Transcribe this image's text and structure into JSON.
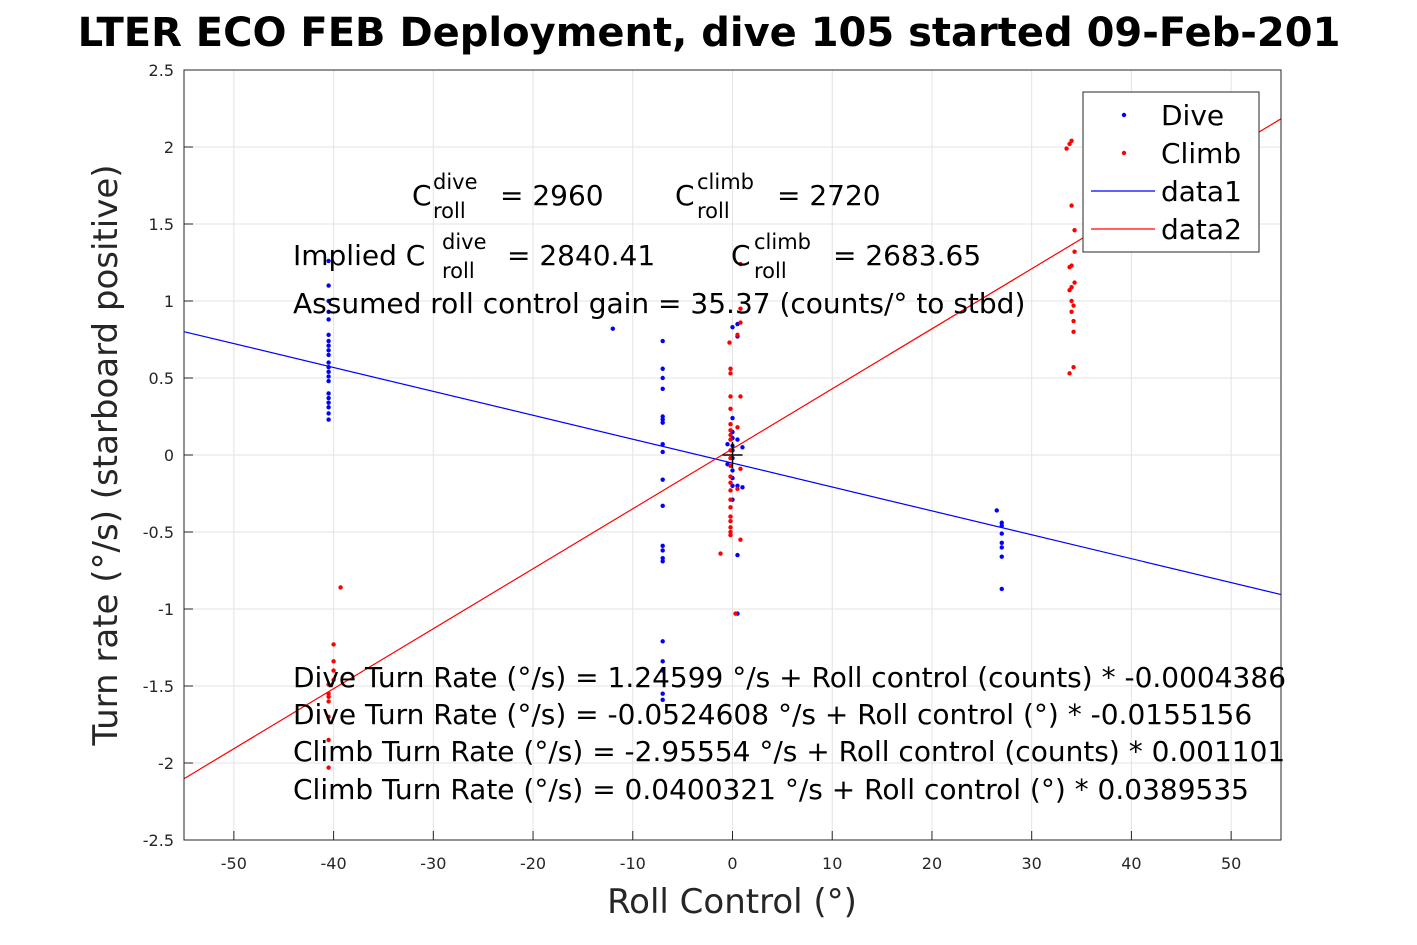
{
  "chart_data": {
    "type": "scatter",
    "title": "LTER ECO FEB Deployment, dive 105 started 09-Feb-201",
    "xlabel": "Roll Control (°)",
    "ylabel": "Turn rate (°/s) (starboard positive)",
    "xlim": [
      -55,
      55
    ],
    "ylim": [
      -2.5,
      2.5
    ],
    "xticks": [
      "-50",
      "-40",
      "-30",
      "-20",
      "-10",
      "0",
      "10",
      "20",
      "30",
      "40",
      "50"
    ],
    "yticks": [
      "-2.5",
      "-2",
      "-1.5",
      "-1",
      "-0.5",
      "0",
      "0.5",
      "1",
      "1.5",
      "2",
      "2.5"
    ],
    "grid": true,
    "legend_position": "top-right",
    "colors": {
      "dive": "#0000ff",
      "climb": "#ff0000",
      "marker": "#000000"
    },
    "legend": [
      {
        "label": "Dive",
        "kind": "point",
        "color": "#0000ff"
      },
      {
        "label": "Climb",
        "kind": "point",
        "color": "#ff0000"
      },
      {
        "label": "data1",
        "kind": "line",
        "color": "#0000ff"
      },
      {
        "label": "data2",
        "kind": "line",
        "color": "#ff0000"
      }
    ],
    "series": [
      {
        "name": "Dive",
        "color": "#0000ff",
        "points": [
          [
            -40.5,
            1.26
          ],
          [
            -40.5,
            1.1
          ],
          [
            -40.5,
            1.0
          ],
          [
            -40.5,
            0.93
          ],
          [
            -40.5,
            0.88
          ],
          [
            -40.5,
            0.78
          ],
          [
            -40.5,
            0.74
          ],
          [
            -40.5,
            0.71
          ],
          [
            -40.5,
            0.68
          ],
          [
            -40.5,
            0.65
          ],
          [
            -40.5,
            0.6
          ],
          [
            -40.5,
            0.57
          ],
          [
            -40.5,
            0.54
          ],
          [
            -40.5,
            0.51
          ],
          [
            -40.5,
            0.48
          ],
          [
            -40.5,
            0.4
          ],
          [
            -40.5,
            0.37
          ],
          [
            -40.5,
            0.34
          ],
          [
            -40.5,
            0.31
          ],
          [
            -40.5,
            0.27
          ],
          [
            -40.5,
            0.23
          ],
          [
            -12,
            0.82
          ],
          [
            -7,
            0.74
          ],
          [
            -7,
            0.56
          ],
          [
            -7,
            0.5
          ],
          [
            -7,
            0.43
          ],
          [
            -7,
            0.25
          ],
          [
            -7,
            0.23
          ],
          [
            -7,
            0.21
          ],
          [
            -7,
            0.07
          ],
          [
            -7,
            0.02
          ],
          [
            -7,
            -0.16
          ],
          [
            -7,
            -0.33
          ],
          [
            -7,
            -0.59
          ],
          [
            -7,
            -0.62
          ],
          [
            -7,
            -0.67
          ],
          [
            -7,
            -0.69
          ],
          [
            -7,
            -1.21
          ],
          [
            -7,
            -1.34
          ],
          [
            -7,
            -1.4
          ],
          [
            -7,
            -1.55
          ],
          [
            -7,
            -1.59
          ],
          [
            0,
            0.83
          ],
          [
            0,
            0.24
          ],
          [
            0,
            0.15
          ],
          [
            0,
            0.11
          ],
          [
            0,
            0.06
          ],
          [
            0,
            0.03
          ],
          [
            0,
            -0.02
          ],
          [
            0,
            -0.1
          ],
          [
            0,
            -0.15
          ],
          [
            0,
            -0.2
          ],
          [
            0,
            -0.29
          ],
          [
            0.5,
            0.85
          ],
          [
            0.5,
            0.77
          ],
          [
            0.5,
            0.1
          ],
          [
            0.5,
            -0.2
          ],
          [
            0.5,
            -0.65
          ],
          [
            0.5,
            -1.03
          ],
          [
            1,
            0.05
          ],
          [
            1,
            -0.21
          ],
          [
            -0.5,
            0.07
          ],
          [
            -0.5,
            -0.06
          ],
          [
            26.5,
            -0.36
          ],
          [
            27,
            -0.44
          ],
          [
            27,
            -0.46
          ],
          [
            27,
            -0.51
          ],
          [
            27,
            -0.57
          ],
          [
            27,
            -0.6
          ],
          [
            27,
            -0.66
          ],
          [
            27,
            -0.87
          ]
        ]
      },
      {
        "name": "Climb",
        "color": "#ff0000",
        "points": [
          [
            -40.5,
            -1.49
          ],
          [
            -40.5,
            -1.55
          ],
          [
            -40.5,
            -1.57
          ],
          [
            -40.5,
            -1.6
          ],
          [
            -40.5,
            -1.7
          ],
          [
            -40.5,
            -1.85
          ],
          [
            -40.5,
            -2.03
          ],
          [
            -40,
            -1.23
          ],
          [
            -40,
            -1.34
          ],
          [
            -40,
            -1.4
          ],
          [
            -40,
            -1.46
          ],
          [
            -39.3,
            -0.86
          ],
          [
            0.8,
            1.24
          ],
          [
            0.8,
            0.95
          ],
          [
            0.8,
            0.86
          ],
          [
            0.8,
            0.38
          ],
          [
            0.8,
            -0.09
          ],
          [
            0.8,
            -0.55
          ],
          [
            0.5,
            0.78
          ],
          [
            0.5,
            0.18
          ],
          [
            0.5,
            -0.22
          ],
          [
            -0.3,
            0.73
          ],
          [
            -0.2,
            0.56
          ],
          [
            -0.2,
            0.53
          ],
          [
            -0.2,
            0.38
          ],
          [
            -0.2,
            0.3
          ],
          [
            -0.2,
            0.2
          ],
          [
            -0.2,
            0.16
          ],
          [
            -0.2,
            0.13
          ],
          [
            -0.2,
            0.1
          ],
          [
            -0.2,
            0.03
          ],
          [
            -0.2,
            -0.02
          ],
          [
            -0.2,
            -0.07
          ],
          [
            -0.2,
            -0.14
          ],
          [
            -0.2,
            -0.18
          ],
          [
            -0.2,
            -0.23
          ],
          [
            -0.2,
            -0.29
          ],
          [
            -0.2,
            -0.34
          ],
          [
            -0.2,
            -0.4
          ],
          [
            -0.2,
            -0.43
          ],
          [
            -0.2,
            -0.47
          ],
          [
            -0.2,
            -0.5
          ],
          [
            -0.2,
            -0.52
          ],
          [
            -1.2,
            -0.64
          ],
          [
            0.3,
            -1.03
          ],
          [
            33.5,
            1.99
          ],
          [
            33.8,
            2.02
          ],
          [
            34,
            2.04
          ],
          [
            34,
            1.62
          ],
          [
            34.3,
            1.46
          ],
          [
            34.3,
            1.32
          ],
          [
            34,
            1.23
          ],
          [
            33.8,
            1.22
          ],
          [
            34.3,
            1.12
          ],
          [
            34,
            1.09
          ],
          [
            33.8,
            1.07
          ],
          [
            34,
            1.0
          ],
          [
            34.2,
            0.97
          ],
          [
            34,
            0.93
          ],
          [
            34.2,
            0.87
          ],
          [
            34.2,
            0.8
          ],
          [
            34.2,
            0.57
          ],
          [
            33.8,
            0.53
          ]
        ]
      }
    ],
    "fit_lines": [
      {
        "name": "data1",
        "color": "#0000ff",
        "x": [
          -55,
          55
        ],
        "y": [
          0.801,
          -0.906
        ]
      },
      {
        "name": "data2",
        "color": "#ff0000",
        "x": [
          -55,
          55
        ],
        "y": [
          -2.102,
          2.183
        ]
      }
    ],
    "center_marker": [
      0,
      0
    ],
    "annotations": {
      "c_dive_main": "C",
      "c_dive_sup": "dive",
      "c_dive_sub": "roll",
      "c_dive_val": "= 2960",
      "c_climb_main": "C",
      "c_climb_sup": "climb",
      "c_climb_sub": "roll",
      "c_climb_val": "= 2720",
      "implied_prefix": "Implied C",
      "implied_dive_sup": "dive",
      "implied_dive_sub": "roll",
      "implied_dive_val": "= 2840.41",
      "implied_climb_main": "C",
      "implied_climb_sup": "climb",
      "implied_climb_sub": "roll",
      "implied_climb_val": "= 2683.65",
      "gain": "Assumed roll control gain = 35.37 (counts/° to stbd)",
      "eq1": "Dive Turn Rate (°/s) = 1.24599 °/s + Roll control (counts) * -0.0004386",
      "eq2": "Dive Turn Rate (°/s) = -0.0524608 °/s + Roll control (°) * -0.0155156",
      "eq3": "Climb Turn Rate (°/s) = -2.95554 °/s + Roll control (counts) * 0.001101",
      "eq4": "Climb Turn Rate (°/s) = 0.0400321 °/s + Roll control (°) * 0.0389535"
    }
  }
}
